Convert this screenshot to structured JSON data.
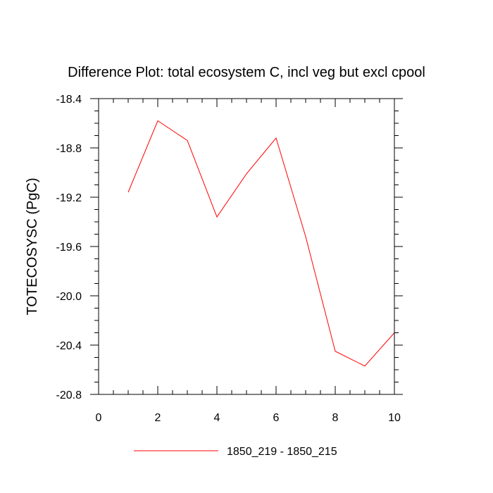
{
  "chart_data": {
    "type": "line",
    "title": "Difference Plot: total ecosystem C, incl veg but excl cpool",
    "xlabel": "",
    "ylabel": "TOTECOSYSC  (PgC)",
    "xlim": [
      0,
      10
    ],
    "ylim": [
      -20.8,
      -18.4
    ],
    "x_ticks": [
      0,
      2,
      4,
      6,
      8,
      10
    ],
    "x_tick_labels": [
      "0",
      "2",
      "4",
      "6",
      "8",
      "10"
    ],
    "y_ticks": [
      -18.4,
      -18.8,
      -19.2,
      -19.6,
      -20.0,
      -20.4,
      -20.8
    ],
    "y_tick_labels": [
      "-18.4",
      "-18.8",
      "-19.2",
      "-19.6",
      "-20.0",
      "-20.4",
      "-20.8"
    ],
    "grid": false,
    "legend_position": "bottom-center",
    "series": [
      {
        "name": "1850_219 - 1850_215",
        "color": "#ff0000",
        "x": [
          1,
          2,
          3,
          4,
          5,
          6,
          7,
          8,
          9,
          10
        ],
        "y": [
          -19.16,
          -18.58,
          -18.74,
          -19.36,
          -19.01,
          -18.72,
          -19.52,
          -20.45,
          -20.57,
          -20.3
        ]
      }
    ]
  }
}
